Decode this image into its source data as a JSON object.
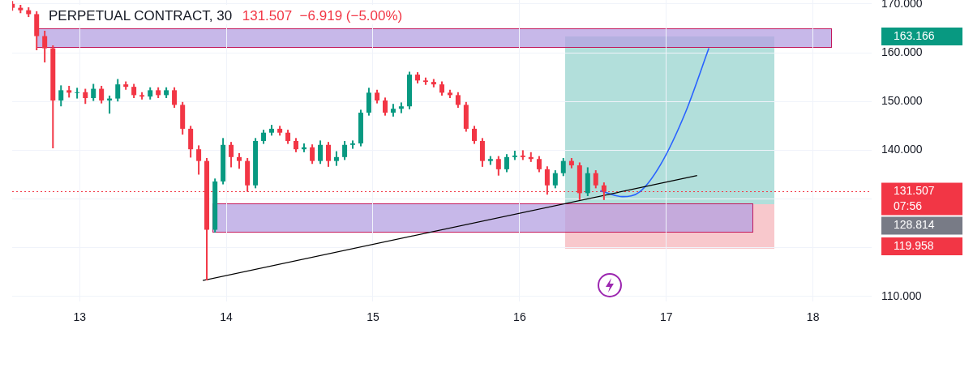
{
  "chart_data": {
    "type": "candlestick",
    "title": "PERPETUAL CONTRACT, 30",
    "subtitle": "131.507  −6.919 (−5.00%)",
    "x": [
      12.541,
      12.597,
      12.652,
      12.707,
      12.762,
      12.818,
      12.873,
      12.928,
      12.983,
      13.039,
      13.094,
      13.149,
      13.204,
      13.26,
      13.315,
      13.37,
      13.425,
      13.481,
      13.536,
      13.591,
      13.646,
      13.702,
      13.757,
      13.812,
      13.867,
      13.923,
      13.978,
      14.033,
      14.088,
      14.144,
      14.199,
      14.254,
      14.309,
      14.365,
      14.42,
      14.475,
      14.53,
      14.586,
      14.641,
      14.696,
      14.751,
      14.807,
      14.862,
      14.917,
      14.972,
      15.028,
      15.083,
      15.138,
      15.193,
      15.249,
      15.304,
      15.359,
      15.414,
      15.47,
      15.525,
      15.58,
      15.635,
      15.691,
      15.746,
      15.801,
      15.856,
      15.912,
      15.967,
      16.022,
      16.077,
      16.133,
      16.188,
      16.243,
      16.298,
      16.354,
      16.409,
      16.464,
      16.519,
      16.575
    ],
    "ohlc": [
      [
        170.0,
        170.6,
        168.6,
        169.2
      ],
      [
        169.2,
        169.8,
        168.1,
        168.7
      ],
      [
        168.7,
        169.3,
        167.3,
        167.9
      ],
      [
        167.9,
        168.5,
        160.5,
        163.4
      ],
      [
        163.4,
        164.5,
        158.0,
        160.9
      ],
      [
        160.9,
        161.5,
        140.4,
        150.2
      ],
      [
        150.2,
        153.3,
        149.0,
        152.3
      ],
      [
        152.3,
        153.2,
        150.8,
        151.8
      ],
      [
        151.8,
        152.8,
        150.6,
        151.9
      ],
      [
        151.9,
        152.6,
        149.5,
        150.7
      ],
      [
        150.7,
        153.6,
        150.1,
        152.6
      ],
      [
        152.6,
        153.2,
        149.6,
        150.2
      ],
      [
        150.2,
        151.2,
        147.5,
        150.6
      ],
      [
        150.6,
        154.6,
        150.0,
        153.5
      ],
      [
        153.5,
        154.1,
        152.4,
        153.0
      ],
      [
        153.0,
        153.6,
        150.7,
        151.3
      ],
      [
        151.3,
        151.9,
        150.4,
        151.0
      ],
      [
        151.0,
        152.9,
        150.4,
        152.3
      ],
      [
        152.3,
        152.9,
        150.7,
        151.3
      ],
      [
        151.3,
        152.9,
        150.7,
        152.3
      ],
      [
        152.3,
        152.9,
        148.7,
        149.3
      ],
      [
        149.3,
        149.9,
        143.2,
        144.4
      ],
      [
        144.4,
        145.0,
        138.5,
        140.2
      ],
      [
        140.2,
        141.0,
        135.0,
        137.8
      ],
      [
        137.8,
        138.4,
        113.3,
        123.7
      ],
      [
        123.7,
        134.2,
        123.1,
        133.6
      ],
      [
        133.6,
        142.5,
        133.0,
        141.1
      ],
      [
        141.1,
        141.7,
        136.5,
        138.6
      ],
      [
        138.6,
        139.4,
        136.2,
        137.8
      ],
      [
        137.8,
        138.4,
        131.5,
        132.8
      ],
      [
        132.8,
        142.5,
        132.2,
        141.9
      ],
      [
        141.9,
        144.2,
        141.3,
        143.6
      ],
      [
        143.6,
        145.2,
        143.0,
        144.4
      ],
      [
        144.4,
        145.0,
        143.0,
        143.6
      ],
      [
        143.6,
        144.2,
        141.3,
        141.9
      ],
      [
        141.9,
        142.5,
        139.6,
        140.2
      ],
      [
        140.2,
        141.4,
        139.6,
        140.6
      ],
      [
        140.6,
        141.2,
        137.2,
        137.8
      ],
      [
        137.8,
        142.0,
        137.2,
        141.1
      ],
      [
        141.1,
        141.7,
        136.6,
        137.8
      ],
      [
        137.8,
        139.8,
        136.8,
        138.6
      ],
      [
        138.6,
        141.9,
        138.0,
        141.1
      ],
      [
        141.1,
        142.0,
        140.3,
        141.4
      ],
      [
        141.4,
        148.3,
        140.8,
        147.7
      ],
      [
        147.7,
        152.8,
        147.1,
        151.8
      ],
      [
        151.8,
        152.4,
        149.6,
        150.2
      ],
      [
        150.2,
        150.8,
        147.1,
        147.7
      ],
      [
        147.7,
        149.5,
        146.9,
        148.5
      ],
      [
        148.5,
        149.8,
        147.6,
        149.0
      ],
      [
        149.0,
        156.1,
        148.4,
        155.5
      ],
      [
        155.5,
        156.0,
        153.7,
        154.3
      ],
      [
        154.3,
        154.9,
        153.4,
        154.0
      ],
      [
        154.0,
        154.6,
        152.9,
        153.5
      ],
      [
        153.5,
        154.1,
        151.2,
        151.8
      ],
      [
        151.8,
        152.4,
        150.7,
        151.3
      ],
      [
        151.3,
        151.9,
        148.7,
        149.3
      ],
      [
        149.3,
        149.9,
        143.8,
        144.4
      ],
      [
        144.4,
        145.0,
        141.3,
        141.9
      ],
      [
        141.9,
        142.5,
        136.6,
        137.8
      ],
      [
        137.8,
        138.8,
        137.0,
        138.2
      ],
      [
        138.2,
        138.8,
        134.8,
        136.1
      ],
      [
        136.1,
        139.2,
        135.5,
        138.6
      ],
      [
        138.6,
        139.9,
        138.0,
        138.9
      ],
      [
        138.9,
        140.0,
        138.0,
        138.6
      ],
      [
        138.6,
        139.6,
        137.6,
        138.2
      ],
      [
        138.2,
        138.8,
        135.5,
        136.1
      ],
      [
        136.1,
        136.7,
        130.9,
        132.8
      ],
      [
        132.8,
        135.9,
        132.2,
        135.3
      ],
      [
        135.3,
        138.4,
        134.7,
        137.8
      ],
      [
        137.8,
        138.4,
        136.3,
        136.9
      ],
      [
        136.9,
        137.5,
        129.8,
        131.2
      ],
      [
        131.2,
        136.5,
        130.6,
        135.3
      ],
      [
        135.3,
        135.9,
        132.2,
        132.8
      ],
      [
        132.8,
        133.4,
        129.8,
        131.5
      ]
    ],
    "series": [
      {
        "type": "line",
        "color": "#000000",
        "x": [
          13.84,
          17.21
        ],
        "values": [
          113.3,
          134.8
        ]
      },
      {
        "type": "line",
        "color": "#2962ff",
        "x": [
          16.55,
          16.7,
          16.82,
          16.96,
          17.13,
          17.29
        ],
        "values": [
          131.7,
          130.5,
          131.5,
          137.0,
          147.7,
          160.9
        ]
      }
    ],
    "ref_lines": [
      {
        "axis": "y",
        "value": 131.507,
        "label": "131.507",
        "color": "#f23645",
        "line_style": "dotted"
      }
    ],
    "annotations": [
      "07:56",
      "163.166",
      "128.814",
      "119.958"
    ],
    "xlim": [
      12.54,
      18.4
    ],
    "xticks": [
      13,
      14,
      15,
      16,
      17,
      18
    ],
    "ylim": [
      109,
      170.8
    ],
    "yticks": [
      {
        "value": 110,
        "label": "110.000"
      },
      {
        "value": 120,
        "label": null
      },
      {
        "value": 130,
        "label": null
      },
      {
        "value": 140,
        "label": "140.000"
      },
      {
        "value": 150,
        "label": "150.000"
      },
      {
        "value": 160,
        "label": "160.000"
      },
      {
        "value": 170,
        "label": "170.000"
      }
    ],
    "grid": true,
    "legend": false,
    "marker": "none",
    "line_style": "solid"
  }
}
